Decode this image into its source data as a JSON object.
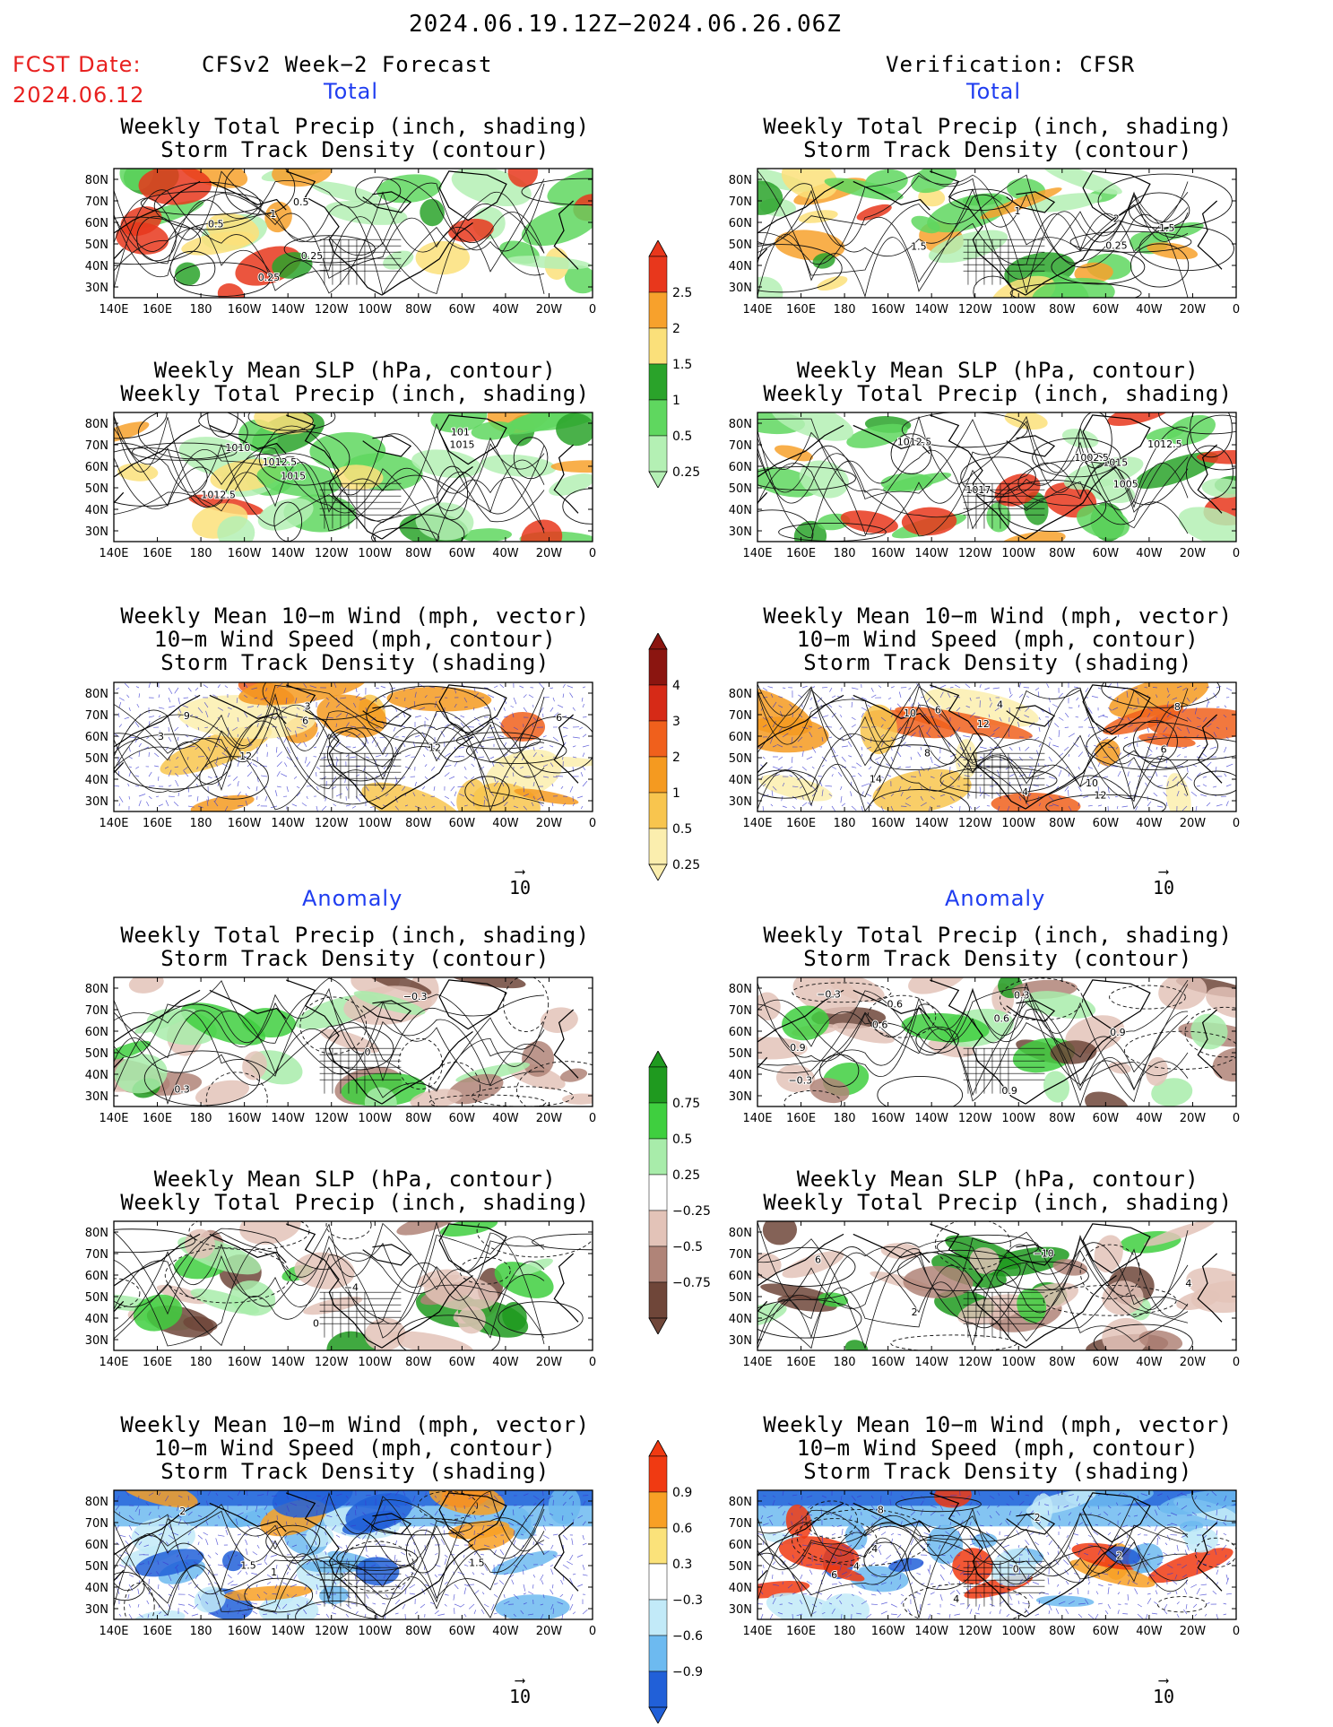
{
  "header": {
    "period": "2024.06.19.12Z−2024.06.26.06Z",
    "fcst_label": "FCST Date:",
    "fcst_date": "2024.06.12",
    "left_title": "CFSv2 Week−2 Forecast",
    "right_title": "Verification: CFSR"
  },
  "sections": {
    "total": "Total",
    "anomaly": "Anomaly"
  },
  "titles": {
    "precip_storm": [
      "Weekly Total Precip (inch, shading)",
      "Storm Track Density (contour)"
    ],
    "slp_precip": [
      "Weekly Mean SLP (hPa, contour)",
      "Weekly Total Precip (inch, shading)"
    ],
    "wind_storm": [
      "Weekly Mean 10−m Wind (mph, vector)",
      "10−m Wind Speed (mph, contour)",
      "Storm Track Density (shading)"
    ]
  },
  "axes": {
    "lat_labels": [
      "80N",
      "70N",
      "60N",
      "50N",
      "40N",
      "30N"
    ],
    "lon_labels": [
      "140E",
      "160E",
      "180",
      "160W",
      "140W",
      "120W",
      "100W",
      "80W",
      "60W",
      "40W",
      "20W",
      "0"
    ]
  },
  "vector_ref": "10",
  "colorbars": {
    "precip_total": {
      "labels": [
        "2.5",
        "2",
        "1.5",
        "1",
        "0.5",
        "0.25"
      ],
      "colors": [
        "#e8371c",
        "#f7a12c",
        "#fbe07a",
        "#2aa32a",
        "#5fd75f",
        "#b4f0b4"
      ]
    },
    "storm_total": {
      "labels": [
        "4",
        "3",
        "2",
        "1",
        "0.5",
        "0.25"
      ],
      "colors": [
        "#8b1510",
        "#d62a17",
        "#f0601c",
        "#f59a20",
        "#f8c54e",
        "#fbeeae"
      ]
    },
    "precip_anom": {
      "labels": [
        "0.75",
        "0.5",
        "0.25",
        "−0.25",
        "−0.5",
        "−0.75"
      ],
      "colors": [
        "#1f9a1f",
        "#3fcf3f",
        "#a8ecaa",
        "#ffffff",
        "#e3c3b8",
        "#b08478",
        "#6f4639"
      ]
    },
    "storm_anom": {
      "labels": [
        "0.9",
        "0.6",
        "0.3",
        "−0.3",
        "−0.6",
        "−0.9"
      ],
      "colors": [
        "#f03a12",
        "#f8a025",
        "#fbe27a",
        "#ffffff",
        "#c2eaf8",
        "#6dbaf0",
        "#2160d8"
      ]
    }
  },
  "contour_labels": {
    "f_precip": [
      "0.5",
      "0.25",
      "0.25",
      "1",
      "0.5"
    ],
    "v_precip": [
      "1.5",
      "1.5",
      "0.25",
      "2",
      "1"
    ],
    "f_slp": [
      "1015",
      "1012.5",
      "1015",
      "1010",
      "1012.5",
      "101"
    ],
    "v_slp": [
      "1017",
      "1015",
      "1012.5",
      "1012.5",
      "1005",
      "1002.5"
    ],
    "f_wind": [
      "3",
      "3",
      "6",
      "9",
      "12",
      "12",
      "6"
    ],
    "v_wind": [
      "6",
      "8",
      "4",
      "4",
      "8",
      "10",
      "12",
      "14",
      "10",
      "12",
      "6"
    ],
    "f_panom": [
      "−0.3",
      "0",
      "0.3"
    ],
    "v_panom": [
      "0.9",
      "0.9",
      "−0.3",
      "0.6",
      "0.6",
      "−0.3",
      "0.3",
      "0.9",
      "0.6"
    ],
    "f_sanom": [
      "0",
      "−4"
    ],
    "v_sanom": [
      "2",
      "4",
      "6",
      "−10"
    ],
    "f_wanom": [
      "1.5",
      "1.5",
      "2",
      "1"
    ],
    "v_wanom": [
      "2",
      "4",
      "2",
      "0",
      "4",
      "4",
      "6",
      "8"
    ]
  }
}
